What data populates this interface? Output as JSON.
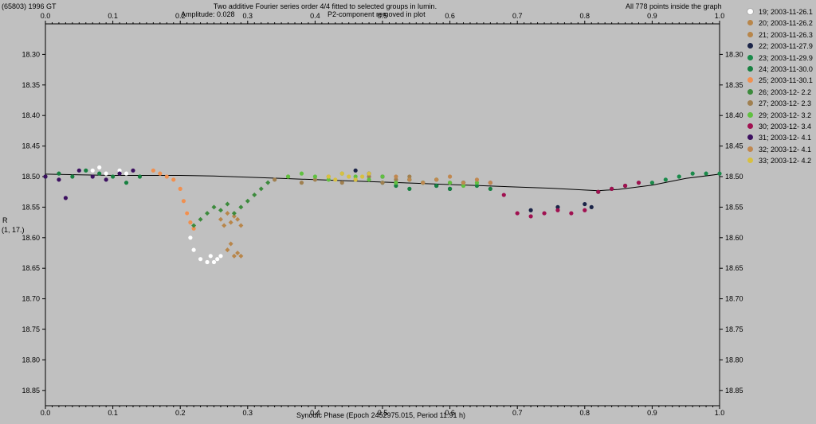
{
  "header": {
    "object": "(65803) 1996 GT",
    "title_line1": "Two additive Fourier series order 4/4 fitted to selected groups in lumin.",
    "amplitude": "Amplitude: 0.028",
    "p2_note": "P2-component removed in plot",
    "points_note": "All 778 points inside the graph"
  },
  "chart_data": {
    "type": "scatter",
    "title": "Two additive Fourier series order 4/4 fitted to selected groups in lumin.",
    "xlabel": "Synodic Phase (Epoch 2452975.015, Period 11.91 h)",
    "ylabel": "R",
    "ylabel_sub": "(1, 17.)",
    "xlim": [
      0.0,
      1.0
    ],
    "ylim": [
      18.25,
      18.875
    ],
    "y_inverted": true,
    "grid": false,
    "legend_position": "right",
    "x_ticks": [
      "0.0",
      "0.1",
      "0.2",
      "0.3",
      "0.4",
      "0.5",
      "0.6",
      "0.7",
      "0.8",
      "0.9",
      "1.0"
    ],
    "y_ticks": [
      "18.30",
      "18.35",
      "18.40",
      "18.45",
      "18.50",
      "18.55",
      "18.60",
      "18.65",
      "18.70",
      "18.75",
      "18.80",
      "18.85"
    ],
    "fit_curve": {
      "x": [
        0.0,
        0.05,
        0.1,
        0.15,
        0.2,
        0.25,
        0.3,
        0.35,
        0.4,
        0.45,
        0.5,
        0.55,
        0.6,
        0.65,
        0.7,
        0.75,
        0.8,
        0.82,
        0.85,
        0.9,
        0.95,
        1.0
      ],
      "y": [
        18.496,
        18.497,
        18.498,
        18.498,
        18.498,
        18.499,
        18.501,
        18.503,
        18.505,
        18.507,
        18.509,
        18.511,
        18.513,
        18.515,
        18.517,
        18.519,
        18.522,
        18.523,
        18.521,
        18.514,
        18.503,
        18.496
      ]
    },
    "series": [
      {
        "name": "19; 2003-11-26.1",
        "color": "#ffffff",
        "marker": "circle",
        "x": [
          0.07,
          0.08,
          0.09,
          0.1,
          0.11,
          0.12,
          0.21,
          0.215,
          0.22,
          0.23,
          0.24,
          0.245,
          0.25,
          0.255,
          0.26
        ],
        "y": [
          18.49,
          18.485,
          18.495,
          18.5,
          18.49,
          18.495,
          18.56,
          18.6,
          18.62,
          18.635,
          18.64,
          18.63,
          18.64,
          18.635,
          18.63
        ]
      },
      {
        "name": "20; 2003-11-26.2",
        "color": "#b8864a",
        "marker": "diamond",
        "x": [
          0.27,
          0.275,
          0.28,
          0.285,
          0.29
        ],
        "y": [
          18.62,
          18.61,
          18.63,
          18.625,
          18.63
        ]
      },
      {
        "name": "21; 2003-11-26.3",
        "color": "#b8864a",
        "marker": "diamond",
        "x": [
          0.26,
          0.265,
          0.27,
          0.275,
          0.28,
          0.285,
          0.29
        ],
        "y": [
          18.57,
          18.58,
          18.56,
          18.575,
          18.565,
          18.57,
          18.58
        ]
      },
      {
        "name": "22; 2003-11-27.9",
        "color": "#1b2448",
        "marker": "circle",
        "x": [
          0.46,
          0.48,
          0.5,
          0.52,
          0.54,
          0.56,
          0.58,
          0.6,
          0.62,
          0.72,
          0.76,
          0.8,
          0.81
        ],
        "y": [
          18.49,
          18.495,
          18.5,
          18.51,
          18.505,
          18.51,
          18.515,
          18.52,
          18.51,
          18.555,
          18.55,
          18.545,
          18.55
        ]
      },
      {
        "name": "23; 2003-11-29.9",
        "color": "#1a8a4a",
        "marker": "circle",
        "x": [
          0.82,
          0.84,
          0.86,
          0.88,
          0.9,
          0.92,
          0.94,
          0.96,
          0.98,
          1.0
        ],
        "y": [
          18.525,
          18.52,
          18.515,
          18.51,
          18.51,
          18.505,
          18.5,
          18.495,
          18.495,
          18.495
        ]
      },
      {
        "name": "24; 2003-11-30.0",
        "color": "#178040",
        "marker": "circle",
        "x": [
          0.0,
          0.02,
          0.04,
          0.06,
          0.08,
          0.1,
          0.12,
          0.14,
          0.5,
          0.52,
          0.54,
          0.56,
          0.58,
          0.6,
          0.62,
          0.64,
          0.66
        ],
        "y": [
          18.5,
          18.495,
          18.5,
          18.49,
          18.495,
          18.5,
          18.51,
          18.5,
          18.51,
          18.515,
          18.52,
          18.51,
          18.515,
          18.52,
          18.51,
          18.515,
          18.52
        ]
      },
      {
        "name": "25; 2003-11-30.1",
        "color": "#f09050",
        "marker": "circle",
        "x": [
          0.16,
          0.17,
          0.18,
          0.19,
          0.2,
          0.205,
          0.21,
          0.215,
          0.22
        ],
        "y": [
          18.49,
          18.495,
          18.5,
          18.505,
          18.52,
          18.54,
          18.56,
          18.575,
          18.585
        ]
      },
      {
        "name": "26; 2003-12- 2.2",
        "color": "#3c8a3c",
        "marker": "diamond",
        "x": [
          0.22,
          0.23,
          0.24,
          0.25,
          0.26,
          0.27,
          0.28,
          0.29,
          0.3,
          0.31,
          0.32,
          0.33
        ],
        "y": [
          18.58,
          18.57,
          18.56,
          18.55,
          18.555,
          18.545,
          18.56,
          18.55,
          18.54,
          18.53,
          18.52,
          18.51
        ]
      },
      {
        "name": "27; 2003-12- 2.3",
        "color": "#a08050",
        "marker": "circle",
        "x": [
          0.34,
          0.36,
          0.38,
          0.4,
          0.42,
          0.44,
          0.46,
          0.48,
          0.5,
          0.52,
          0.54,
          0.56,
          0.58,
          0.6
        ],
        "y": [
          18.505,
          18.5,
          18.51,
          18.505,
          18.5,
          18.51,
          18.505,
          18.5,
          18.51,
          18.505,
          18.5,
          18.51,
          18.505,
          18.51
        ]
      },
      {
        "name": "29; 2003-12- 3.2",
        "color": "#60c040",
        "marker": "circle",
        "x": [
          0.36,
          0.38,
          0.4,
          0.42,
          0.44,
          0.46,
          0.48,
          0.5,
          0.52,
          0.54,
          0.56,
          0.58,
          0.6,
          0.62,
          0.64
        ],
        "y": [
          18.5,
          18.495,
          18.5,
          18.505,
          18.495,
          18.5,
          18.505,
          18.5,
          18.51,
          18.505,
          18.51,
          18.505,
          18.51,
          18.515,
          18.51
        ]
      },
      {
        "name": "30; 2003-12- 3.4",
        "color": "#a01050",
        "marker": "circle",
        "x": [
          0.66,
          0.68,
          0.7,
          0.72,
          0.74,
          0.76,
          0.78,
          0.8,
          0.82,
          0.84,
          0.86,
          0.88
        ],
        "y": [
          18.51,
          18.53,
          18.56,
          18.565,
          18.56,
          18.555,
          18.56,
          18.555,
          18.525,
          18.52,
          18.515,
          18.51
        ]
      },
      {
        "name": "31; 2003-12- 4.1",
        "color": "#3c1060",
        "marker": "circle",
        "x": [
          0.0,
          0.02,
          0.03,
          0.05,
          0.07,
          0.09,
          0.11,
          0.13
        ],
        "y": [
          18.5,
          18.505,
          18.535,
          18.49,
          18.5,
          18.505,
          18.495,
          18.49
        ]
      },
      {
        "name": "32; 2003-12- 4.1",
        "color": "#c08850",
        "marker": "circle",
        "x": [
          0.52,
          0.54,
          0.56,
          0.58,
          0.6,
          0.62,
          0.64,
          0.66
        ],
        "y": [
          18.5,
          18.505,
          18.51,
          18.505,
          18.5,
          18.51,
          18.505,
          18.51
        ]
      },
      {
        "name": "33; 2003-12- 4.2",
        "color": "#d8c040",
        "marker": "circle",
        "x": [
          0.42,
          0.43,
          0.44,
          0.45,
          0.46,
          0.47,
          0.48
        ],
        "y": [
          18.5,
          18.505,
          18.495,
          18.5,
          18.505,
          18.5,
          18.495
        ]
      }
    ]
  }
}
